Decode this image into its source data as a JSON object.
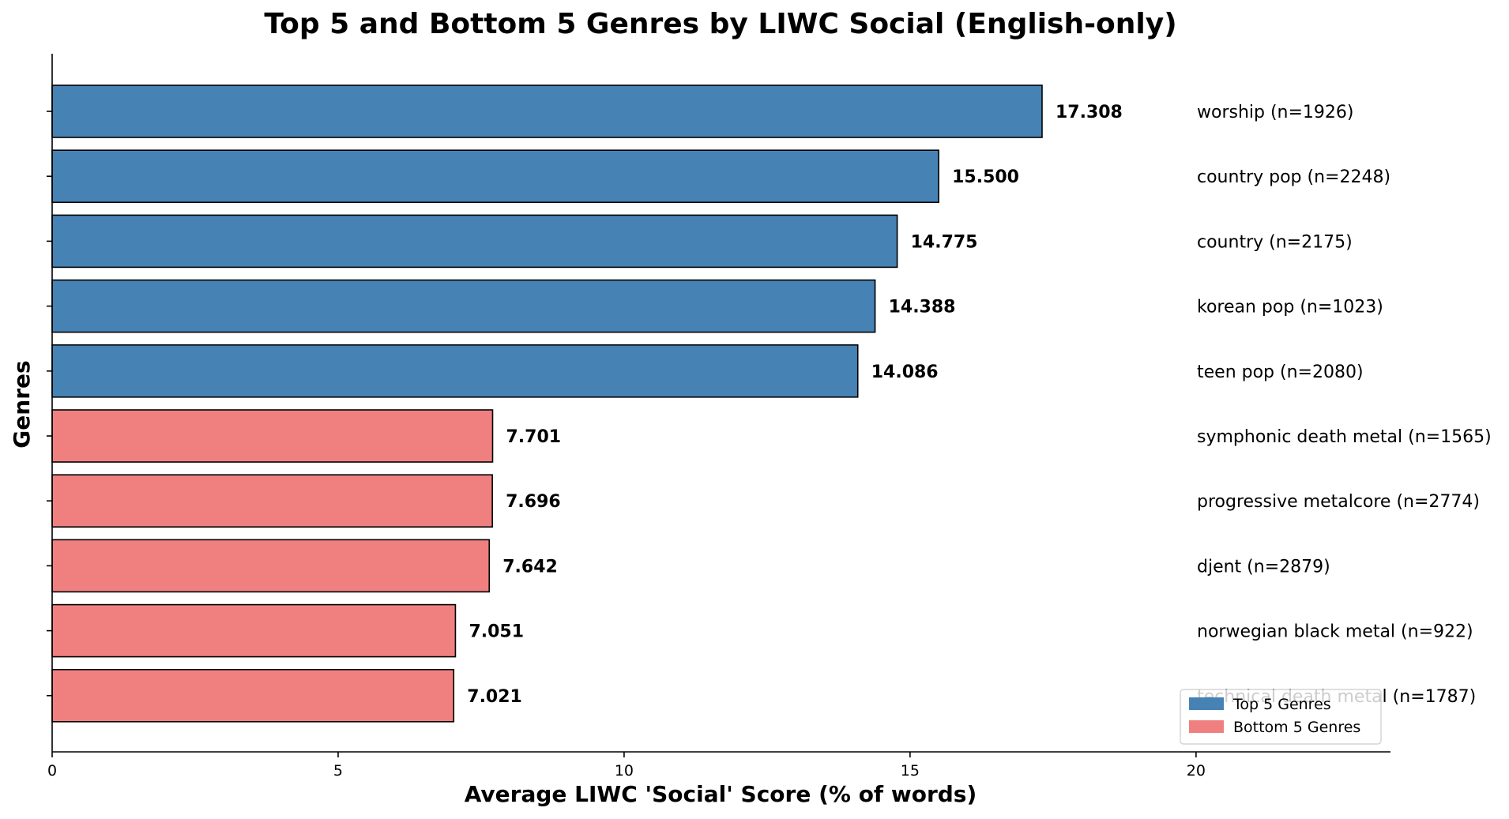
{
  "chart_data": {
    "type": "bar",
    "orientation": "horizontal",
    "title": "Top 5 and Bottom 5 Genres by LIWC Social (English-only)",
    "xlabel": "Average LIWC 'Social' Score (% of words)",
    "ylabel": "Genres",
    "xlim": [
      0,
      23.4
    ],
    "xticks": [
      0,
      5,
      10,
      15,
      20
    ],
    "grid": false,
    "legend_position": "lower-right",
    "colors": {
      "top": "#4682b4",
      "bottom": "#f08080"
    },
    "legend": [
      {
        "label": "Top 5 Genres",
        "group": "top"
      },
      {
        "label": "Bottom 5 Genres",
        "group": "bottom"
      }
    ],
    "bars": [
      {
        "genre_label": "worship (n=1926)",
        "value": 17.308,
        "value_label": "17.308",
        "group": "top"
      },
      {
        "genre_label": "country pop (n=2248)",
        "value": 15.5,
        "value_label": "15.500",
        "group": "top"
      },
      {
        "genre_label": "country (n=2175)",
        "value": 14.775,
        "value_label": "14.775",
        "group": "top"
      },
      {
        "genre_label": "korean pop (n=1023)",
        "value": 14.388,
        "value_label": "14.388",
        "group": "top"
      },
      {
        "genre_label": "teen pop (n=2080)",
        "value": 14.086,
        "value_label": "14.086",
        "group": "top"
      },
      {
        "genre_label": "symphonic death metal (n=1565)",
        "value": 7.701,
        "value_label": "7.701",
        "group": "bottom"
      },
      {
        "genre_label": "progressive metalcore (n=2774)",
        "value": 7.696,
        "value_label": "7.696",
        "group": "bottom"
      },
      {
        "genre_label": "djent (n=2879)",
        "value": 7.642,
        "value_label": "7.642",
        "group": "bottom"
      },
      {
        "genre_label": "norwegian black metal (n=922)",
        "value": 7.051,
        "value_label": "7.051",
        "group": "bottom"
      },
      {
        "genre_label": "technical death metal (n=1787)",
        "value": 7.021,
        "value_label": "7.021",
        "group": "bottom"
      }
    ]
  }
}
